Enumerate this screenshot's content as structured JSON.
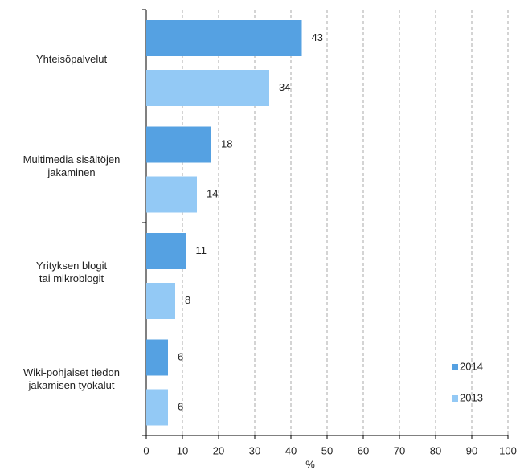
{
  "chart_data": {
    "type": "barh",
    "categories": [
      "Yhteisöpalvelut",
      "Multimedia sisältöjen\njakaminen",
      "Yrityksen blogit\ntai mikroblogit",
      "Wiki-pohjaiset tiedon\njakamisen työkalut"
    ],
    "series": [
      {
        "name": "2014",
        "color": "#55a1e2",
        "values": [
          43,
          18,
          11,
          6
        ]
      },
      {
        "name": "2013",
        "color": "#93c9f5",
        "values": [
          34,
          14,
          8,
          6
        ]
      }
    ],
    "xlabel": "%",
    "xlim": [
      0,
      100
    ],
    "xticks": [
      0,
      10,
      20,
      30,
      40,
      50,
      60,
      70,
      80,
      90,
      100
    ],
    "grid": true,
    "legend": "lower right"
  }
}
